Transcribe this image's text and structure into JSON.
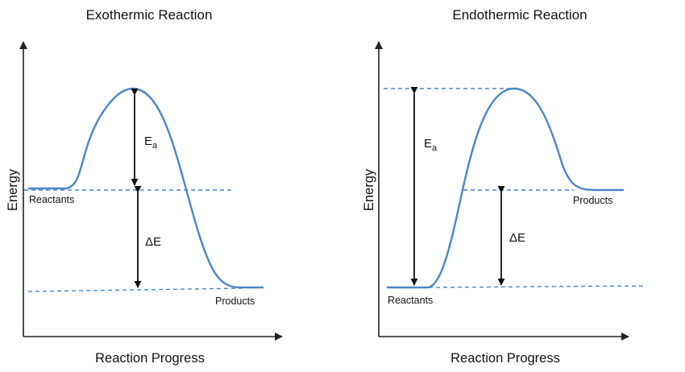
{
  "panels": [
    {
      "title": "Exothermic Reaction",
      "y_axis_label": "Energy",
      "x_axis_label": "Reaction Progress",
      "reactants_label": "Reactants",
      "products_label": "Products",
      "activation_energy_symbol": "E",
      "activation_energy_subscript": "a",
      "delta_label": "ΔE"
    },
    {
      "title": "Endothermic Reaction",
      "y_axis_label": "Energy",
      "x_axis_label": "Reaction Progress",
      "reactants_label": "Reactants",
      "products_label": "Products",
      "activation_energy_symbol": "E",
      "activation_energy_subscript": "a",
      "delta_label": "ΔE"
    }
  ],
  "colors": {
    "curve": "#4a86c8",
    "axes": "#222222",
    "arrows": "#111111"
  }
}
